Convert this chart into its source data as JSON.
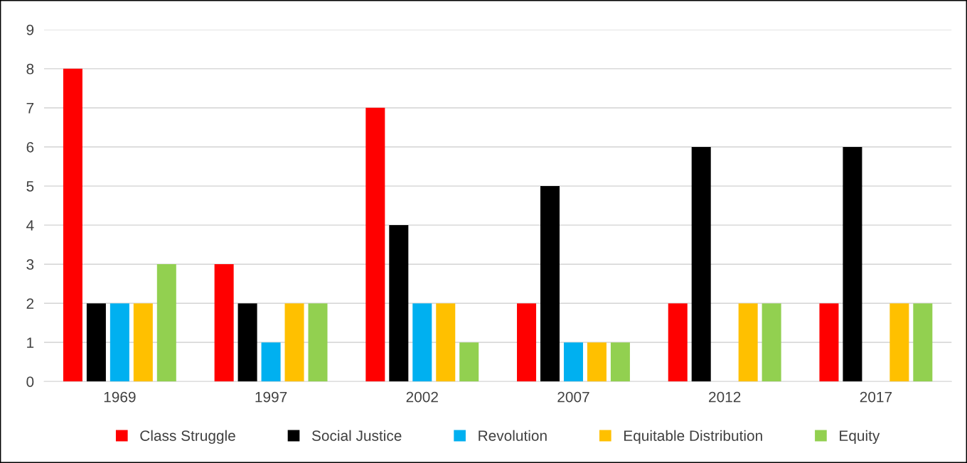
{
  "chart_data": {
    "type": "bar",
    "categories": [
      "1969",
      "1997",
      "2002",
      "2007",
      "2012",
      "2017"
    ],
    "series": [
      {
        "name": "Class Struggle",
        "color": "#ff0000",
        "values": [
          8,
          3,
          7,
          2,
          2,
          2
        ]
      },
      {
        "name": "Social Justice",
        "color": "#000000",
        "values": [
          2,
          2,
          4,
          5,
          6,
          6
        ]
      },
      {
        "name": "Revolution",
        "color": "#00b0f0",
        "values": [
          2,
          1,
          2,
          1,
          0,
          0
        ]
      },
      {
        "name": "Equitable Distribution",
        "color": "#ffc000",
        "values": [
          2,
          2,
          2,
          1,
          2,
          2
        ]
      },
      {
        "name": "Equity",
        "color": "#92d050",
        "values": [
          3,
          2,
          1,
          1,
          2,
          2
        ]
      }
    ],
    "ylim": [
      0,
      9
    ],
    "yticks": [
      0,
      1,
      2,
      3,
      4,
      5,
      6,
      7,
      8,
      9
    ],
    "grid": "y",
    "legend": "bottom"
  }
}
